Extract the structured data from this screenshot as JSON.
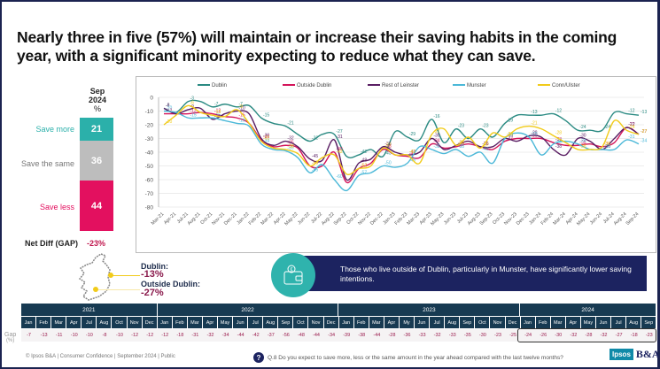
{
  "title": "Nearly three in five (57%) will maintain or increase their saving habits in the coming year, with a significant minority expecting to reduce what they can save.",
  "stacked_bar": {
    "header": [
      "Sep",
      "2024",
      "%"
    ],
    "segments": [
      {
        "label": "Save more",
        "value": "21",
        "color": "#2bb0aa"
      },
      {
        "label": "Save the same",
        "value": "36",
        "color": "#bdbdbd"
      },
      {
        "label": "Save less",
        "value": "44",
        "color": "#e3105f"
      }
    ],
    "net_label": "Net Diff (GAP)",
    "net_value": "-23%"
  },
  "map": {
    "dublin_label": "Dublin:",
    "dublin_value": "-13%",
    "outside_label": "Outside Dublin:",
    "outside_value": "-27%"
  },
  "callout": {
    "icon": "wallet-euro-icon",
    "text": "Those who live outside of Dublin, particularly in Munster, have significantly lower saving intentions."
  },
  "gap_table": {
    "row_label": "Gap",
    "row_unit": "(%)",
    "years": [
      {
        "label": "2021",
        "months": [
          "Jan",
          "Feb",
          "Mar",
          "Apr",
          "Jul",
          "Aug",
          "Oct",
          "Nov",
          "Dec"
        ],
        "values": [
          "-7",
          "-13",
          "-11",
          "-10",
          "-10",
          "-8",
          "-10",
          "-12",
          "-12"
        ]
      },
      {
        "label": "2022",
        "months": [
          "Jan",
          "Feb",
          "Mar",
          "Apr",
          "May",
          "Jun",
          "Jul",
          "Aug",
          "Sep",
          "Oct",
          "Nov",
          "Dec"
        ],
        "values": [
          "-12",
          "-18",
          "-31",
          "-32",
          "-34",
          "-44",
          "-42",
          "-37",
          "-56",
          "-48",
          "-44",
          "-34"
        ]
      },
      {
        "label": "2023",
        "months": [
          "Jan",
          "Feb",
          "Mar",
          "Apr",
          "My",
          "Jun",
          "Jul",
          "Aug",
          "Sep",
          "Oct",
          "Nov",
          "Dec"
        ],
        "values": [
          "-39",
          "-38",
          "-44",
          "-28",
          "-36",
          "-33",
          "-32",
          "-33",
          "-35",
          "-30",
          "-23",
          "-25"
        ]
      },
      {
        "label": "2024",
        "months": [
          "Jan",
          "Feb",
          "Mar",
          "Apr",
          "May",
          "Jun",
          "Jul",
          "Aug",
          "Sep"
        ],
        "values": [
          "-24",
          "-26",
          "-30",
          "-32",
          "-28",
          "-32",
          "-27",
          "-18",
          "-23"
        ]
      }
    ]
  },
  "footer": {
    "source": "© Ipsos B&A | Consumer Confidence | September 2024 | Public",
    "question": "Q.8 Do you expect to save more, less or the same amount in the year ahead compared with the last twelve months?",
    "logo_left": "Ipsos",
    "logo_right": "B&A"
  },
  "chart_data": {
    "type": "line",
    "title": "",
    "xlabel": "",
    "ylabel": "",
    "ylim": [
      -80,
      0
    ],
    "yticks": [
      0,
      -10,
      -20,
      -30,
      -40,
      -50,
      -60,
      -70,
      -80
    ],
    "legend_position": "top",
    "grid": true,
    "x": [
      "Mar-21",
      "Apr-21",
      "Jul-21",
      "Aug-21",
      "Oct-21",
      "Nov-21",
      "Dec-21",
      "Jan-22",
      "Feb-22",
      "Mar-22",
      "Apr-22",
      "May-22",
      "Jun-22",
      "Jul-22",
      "Aug-22",
      "Sep-22",
      "Oct-22",
      "Nov-22",
      "Dec-22",
      "Jan-23",
      "Feb-23",
      "Mar-23",
      "Apr-23",
      "May-23",
      "Jun-23",
      "Jul-23",
      "Aug-23",
      "Sep-23",
      "Oct-23",
      "Nov-23",
      "Dec-23",
      "Jan-24",
      "Feb-24",
      "Mar-24",
      "Apr-24",
      "May-24",
      "Jun-24",
      "Jul-24",
      "Aug-24",
      "Sep-24"
    ],
    "series": [
      {
        "name": "Dublin",
        "color": "#2a8a82",
        "values": [
          -8,
          -11,
          -3,
          -3,
          -7,
          -5,
          -7,
          -6,
          -15,
          -19,
          -21,
          -27,
          -32,
          -27,
          -27,
          -43,
          -42,
          -38,
          -43,
          -25,
          -29,
          -31,
          -16,
          -33,
          -23,
          -30,
          -23,
          -29,
          -19,
          -13,
          -13,
          -13,
          -12,
          -17,
          -24,
          -24,
          -24,
          -11,
          -12,
          -13
        ]
      },
      {
        "name": "Outside Dublin",
        "color": "#d4145a",
        "values": [
          -12,
          -12,
          -12,
          -11,
          -12,
          -14,
          -15,
          -19,
          -31,
          -36,
          -35,
          -37,
          -50,
          -50,
          -40,
          -62,
          -52,
          -48,
          -38,
          -42,
          -43,
          -44,
          -34,
          -37,
          -36,
          -34,
          -36,
          -38,
          -32,
          -30,
          -30,
          -30,
          -33,
          -35,
          -35,
          -34,
          -36,
          -33,
          -22,
          -27
        ]
      },
      {
        "name": "Rest of Leinster",
        "color": "#5a1e63",
        "values": [
          -8,
          -12,
          -9,
          -8,
          -16,
          -12,
          -10,
          -12,
          -30,
          -35,
          -32,
          -36,
          -45,
          -46,
          -31,
          -60,
          -48,
          -45,
          -36,
          -40,
          -42,
          -40,
          -30,
          -38,
          -35,
          -32,
          -36,
          -36,
          -30,
          -32,
          -28,
          -29,
          -38,
          -42,
          -30,
          -32,
          -38,
          -30,
          -22,
          -27
        ]
      },
      {
        "name": "Munster",
        "color": "#4bb8d8",
        "values": [
          -10,
          -11,
          -15,
          -15,
          -15,
          -17,
          -19,
          -21,
          -34,
          -38,
          -39,
          -44,
          -55,
          -49,
          -60,
          -68,
          -57,
          -55,
          -50,
          -51,
          -48,
          -36,
          -38,
          -41,
          -38,
          -43,
          -40,
          -48,
          -30,
          -26,
          -29,
          -42,
          -34,
          -32,
          -34,
          -38,
          -38,
          -38,
          -31,
          -34
        ]
      },
      {
        "name": "Conn/Ulster",
        "color": "#f1cb1a",
        "values": [
          -20,
          -13,
          -6,
          -11,
          -13,
          -14,
          -9,
          -19,
          -32,
          -37,
          -38,
          -41,
          -50,
          -44,
          -42,
          -56,
          -52,
          -50,
          -37,
          -42,
          -42,
          -48,
          -27,
          -23,
          -35,
          -29,
          -37,
          -26,
          -29,
          -23,
          -21,
          -23,
          -28,
          -33,
          -38,
          -38,
          -36,
          -17,
          -24,
          -27
        ]
      }
    ]
  }
}
